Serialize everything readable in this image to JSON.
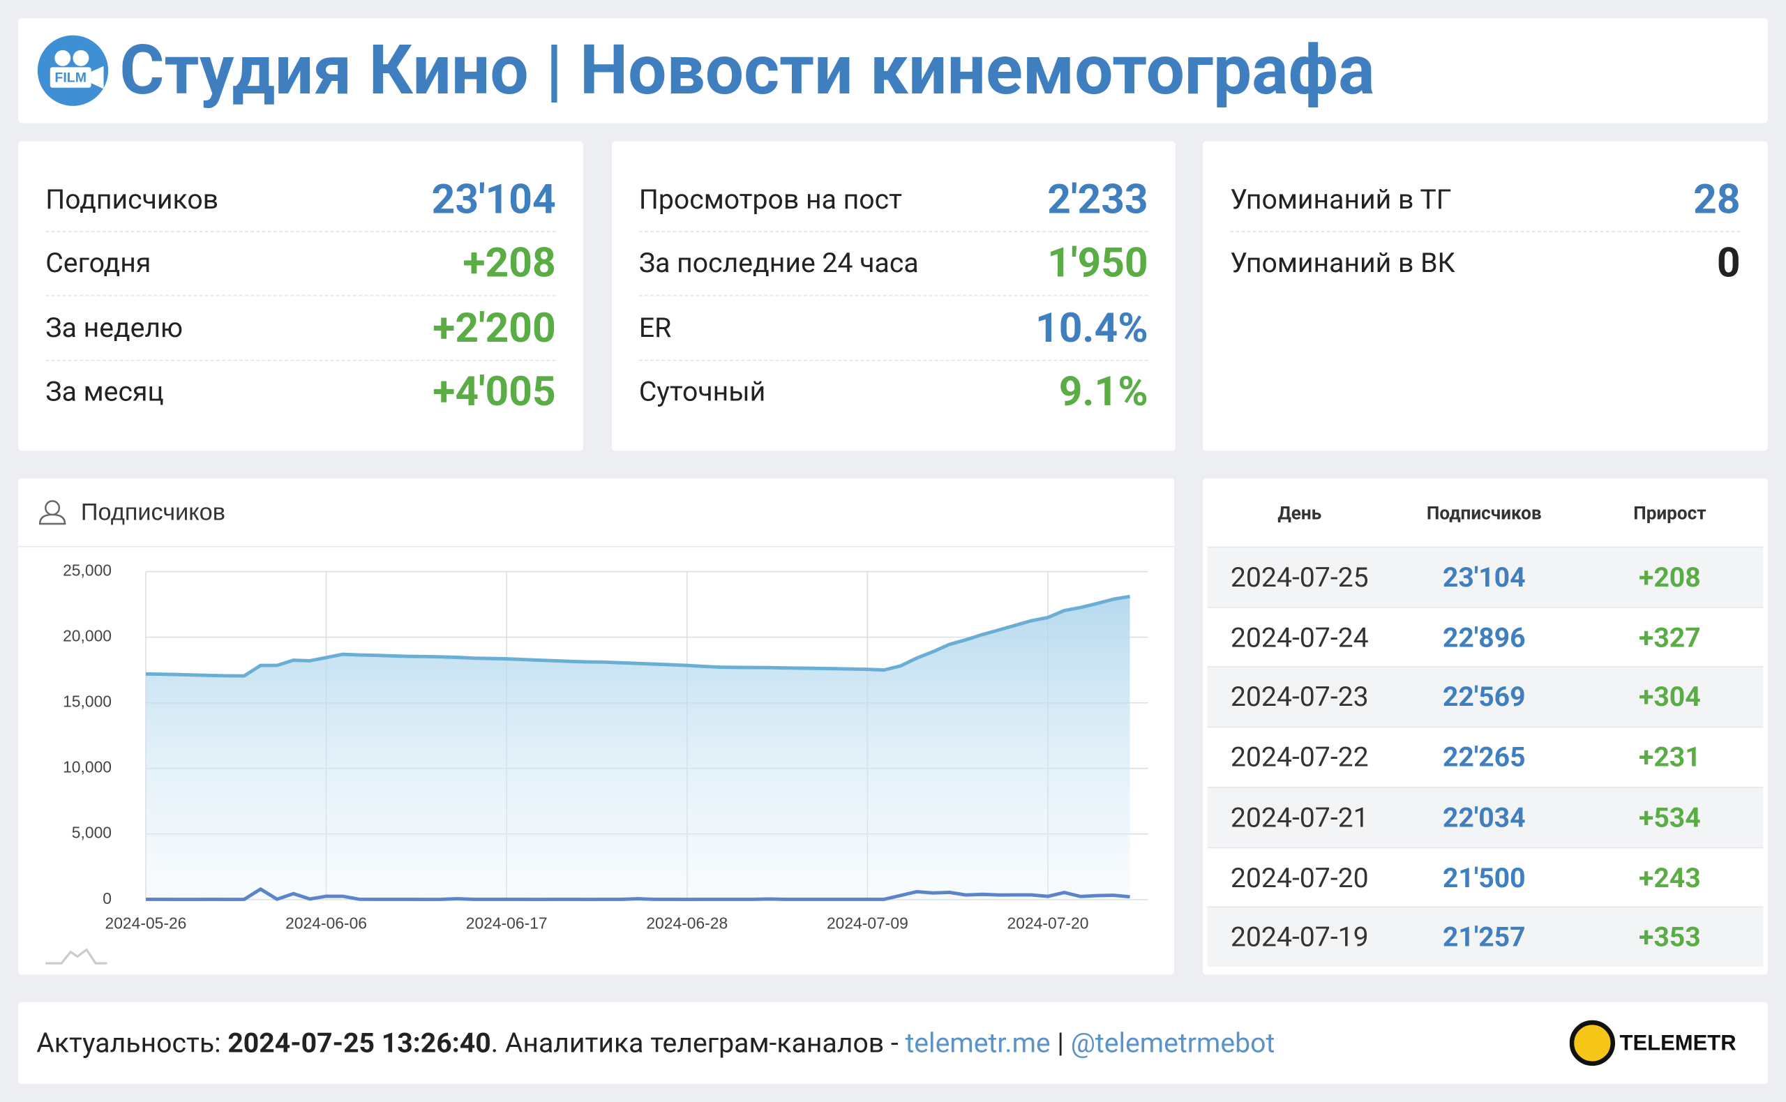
{
  "header": {
    "title": "Студия Кино | Новости кинемотографа",
    "icon_text": "FILM"
  },
  "cards": [
    {
      "rows": [
        [
          "Подписчиков",
          "23'104"
        ],
        [
          "Сегодня",
          "+208"
        ],
        [
          "За неделю",
          "+2'200"
        ],
        [
          "За месяц",
          "+4'005"
        ]
      ]
    },
    {
      "rows": [
        [
          "Просмотров на пост",
          "2'233"
        ],
        [
          "За последние 24 часа",
          "1'950"
        ],
        [
          "ER",
          "10.4%"
        ],
        [
          "Суточный",
          "9.1%"
        ]
      ]
    },
    {
      "rows": [
        [
          "Упоминаний в ТГ",
          "28"
        ],
        [
          "Упоминаний в ВК",
          "0"
        ]
      ]
    }
  ],
  "chart_data": {
    "type": "line",
    "title": "Подписчиков",
    "x": [
      "2024-05-26",
      "2024-05-27",
      "2024-05-28",
      "2024-05-29",
      "2024-05-30",
      "2024-05-31",
      "2024-06-01",
      "2024-06-02",
      "2024-06-03",
      "2024-06-04",
      "2024-06-05",
      "2024-06-06",
      "2024-06-07",
      "2024-06-08",
      "2024-06-09",
      "2024-06-10",
      "2024-06-11",
      "2024-06-12",
      "2024-06-13",
      "2024-06-14",
      "2024-06-15",
      "2024-06-16",
      "2024-06-17",
      "2024-06-18",
      "2024-06-19",
      "2024-06-20",
      "2024-06-21",
      "2024-06-22",
      "2024-06-23",
      "2024-06-24",
      "2024-06-25",
      "2024-06-26",
      "2024-06-27",
      "2024-06-28",
      "2024-06-29",
      "2024-06-30",
      "2024-07-01",
      "2024-07-02",
      "2024-07-03",
      "2024-07-04",
      "2024-07-05",
      "2024-07-06",
      "2024-07-07",
      "2024-07-08",
      "2024-07-09",
      "2024-07-10",
      "2024-07-11",
      "2024-07-12",
      "2024-07-13",
      "2024-07-14",
      "2024-07-15",
      "2024-07-16",
      "2024-07-17",
      "2024-07-18",
      "2024-07-19",
      "2024-07-20",
      "2024-07-21",
      "2024-07-22",
      "2024-07-23",
      "2024-07-24",
      "2024-07-25"
    ],
    "series": [
      {
        "color": "#6aaed6",
        "area": true,
        "values": [
          17200,
          17180,
          17150,
          17120,
          17080,
          17060,
          17050,
          17850,
          17850,
          18250,
          18200,
          18450,
          18700,
          18650,
          18620,
          18580,
          18540,
          18520,
          18500,
          18460,
          18400,
          18380,
          18350,
          18300,
          18250,
          18200,
          18150,
          18120,
          18100,
          18050,
          18000,
          17950,
          17900,
          17850,
          17780,
          17720,
          17700,
          17690,
          17680,
          17660,
          17640,
          17620,
          17600,
          17580,
          17550,
          17500,
          17800,
          18400,
          18900,
          19450,
          19800,
          20200,
          20550,
          20904,
          21257,
          21500,
          22034,
          22265,
          22569,
          22896,
          23104
        ]
      },
      {
        "color": "#5b84c9",
        "area": false,
        "values": [
          20,
          15,
          10,
          10,
          15,
          10,
          20,
          800,
          30,
          450,
          40,
          250,
          250,
          30,
          20,
          15,
          20,
          10,
          15,
          60,
          20,
          15,
          20,
          15,
          10,
          20,
          15,
          10,
          20,
          15,
          60,
          20,
          15,
          10,
          20,
          15,
          20,
          15,
          40,
          20,
          15,
          20,
          15,
          20,
          20,
          15,
          300,
          600,
          500,
          550,
          350,
          400,
          350,
          354,
          353,
          243,
          534,
          231,
          304,
          327,
          208
        ]
      }
    ],
    "xticks": [
      "2024-05-26",
      "2024-06-06",
      "2024-06-17",
      "2024-06-28",
      "2024-07-09",
      "2024-07-20"
    ],
    "ylim": [
      0,
      25000
    ],
    "yticks": [
      0,
      {
        "value": 5000,
        "label": "5,000"
      },
      {
        "value": 10000,
        "label": "10,000"
      },
      {
        "value": 15000,
        "label": "15,000"
      },
      {
        "value": 20000,
        "label": "20,000"
      },
      {
        "value": 25000,
        "label": "25,000"
      }
    ],
    "grid": true
  },
  "table": {
    "columns": [
      "День",
      "Подписчиков",
      "Прирост"
    ],
    "rows": [
      [
        "2024-07-25",
        "23'104",
        "+208"
      ],
      [
        "2024-07-24",
        "22'896",
        "+327"
      ],
      [
        "2024-07-23",
        "22'569",
        "+304"
      ],
      [
        "2024-07-22",
        "22'265",
        "+231"
      ],
      [
        "2024-07-21",
        "22'034",
        "+534"
      ],
      [
        "2024-07-20",
        "21'500",
        "+243"
      ],
      [
        "2024-07-19",
        "21'257",
        "+353"
      ]
    ]
  },
  "footer": {
    "label": "Актуальность:",
    "timestamp": "2024-07-25 13:26:40",
    "text": ". Аналитика телеграм-каналов -",
    "link1": "telemetr.me",
    "separator": "|",
    "link2": "@telemetrmebot",
    "brand": "TELEMETR"
  }
}
